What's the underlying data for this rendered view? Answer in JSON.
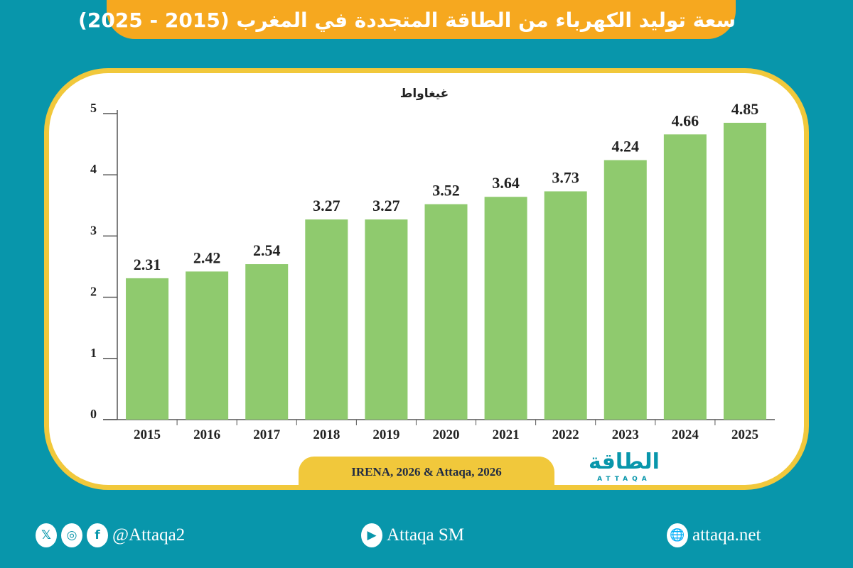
{
  "title": "سعة توليد الكهرباء من الطاقة المتجددة في المغرب (2015 - 2025)",
  "chart_data": {
    "type": "bar",
    "ylabel": "غيغاواط",
    "categories": [
      "2015",
      "2016",
      "2017",
      "2018",
      "2019",
      "2020",
      "2021",
      "2022",
      "2023",
      "2024",
      "2025"
    ],
    "values": [
      2.31,
      2.42,
      2.54,
      3.27,
      3.27,
      3.52,
      3.64,
      3.73,
      4.24,
      4.66,
      4.85
    ],
    "data_labels": [
      "2.31",
      "2.42",
      "2.54",
      "3.27",
      "3.27",
      "3.52",
      "3.64",
      "3.73",
      "4.24",
      "4.66",
      "4.85"
    ],
    "ylim": [
      0,
      5
    ],
    "yticks": [
      "0",
      "1",
      "2",
      "3",
      "4",
      "5"
    ],
    "grid": false,
    "bar_color": "#8fca6e"
  },
  "source": "IRENA, 2026 & Attaqa, 2026",
  "logo": {
    "text": "الطاقة",
    "sub": "ATTAQA"
  },
  "footer": {
    "social_handle": "@Attaqa2",
    "youtube": "Attaqa SM",
    "website": "attaqa.net",
    "icons": [
      "x-icon",
      "instagram-icon",
      "facebook-icon",
      "youtube-icon",
      "globe-icon"
    ]
  },
  "colors": {
    "background": "#0896ab",
    "title_bg": "#f6a81f",
    "border": "#f1c83b"
  }
}
